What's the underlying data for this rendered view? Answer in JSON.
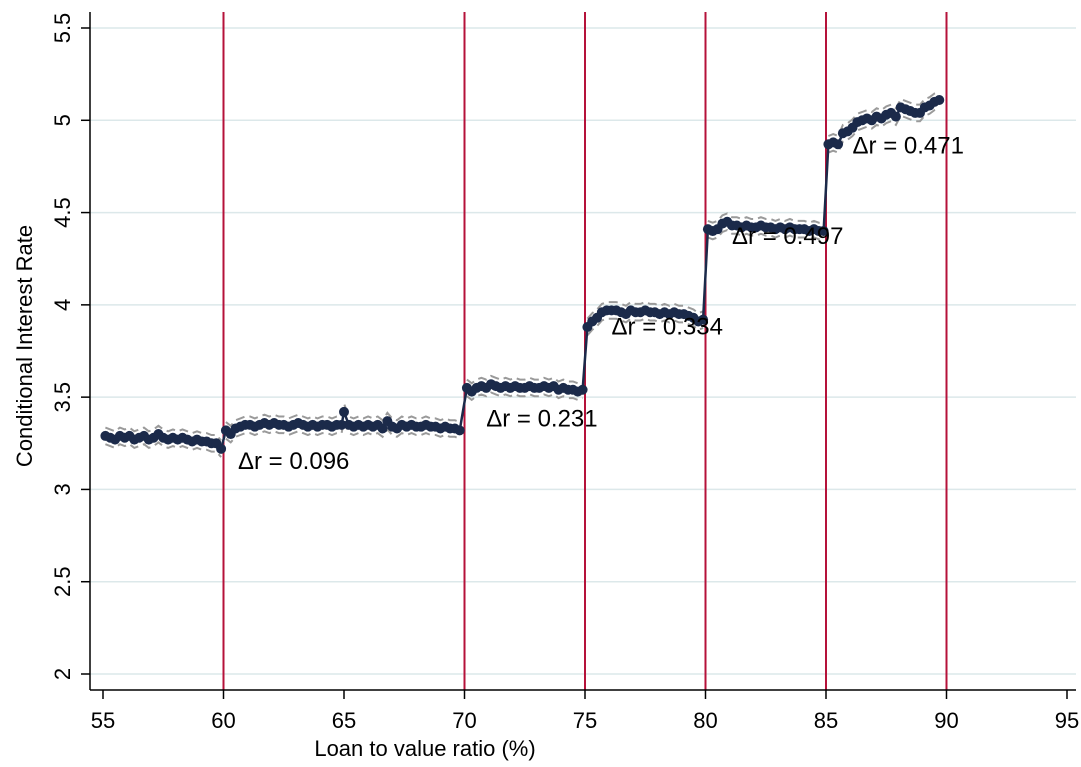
{
  "chart_data": {
    "type": "scatter",
    "title": "",
    "xlabel": "Loan to value ratio (%)",
    "ylabel": "Conditional Interest Rate",
    "xlim": [
      55,
      95
    ],
    "ylim": [
      2,
      5.5
    ],
    "x_ticks": [
      55,
      60,
      65,
      70,
      75,
      80,
      85,
      90,
      95
    ],
    "y_ticks": [
      2,
      2.5,
      3,
      3.5,
      4,
      4.5,
      5,
      5.5
    ],
    "x_tick_labels": [
      "55",
      "60",
      "65",
      "70",
      "75",
      "80",
      "85",
      "90",
      "95"
    ],
    "y_tick_labels": [
      "2",
      "2.5",
      "3",
      "3.5",
      "4",
      "4.5",
      "5",
      "5.5"
    ],
    "grid": "horizontal",
    "vertical_lines": [
      60,
      70,
      75,
      80,
      85,
      90
    ],
    "colors": {
      "series": "#1b2a4a",
      "ci": "#9a9a9a",
      "vline": "#b5123a",
      "grid": "#dce8ea"
    },
    "series": [
      {
        "values": [
          [
            55.1,
            3.29
          ],
          [
            55.3,
            3.28
          ],
          [
            55.5,
            3.27
          ],
          [
            55.7,
            3.29
          ],
          [
            55.9,
            3.28
          ],
          [
            56.1,
            3.29
          ],
          [
            56.3,
            3.27
          ],
          [
            56.5,
            3.28
          ],
          [
            56.7,
            3.29
          ],
          [
            56.9,
            3.27
          ],
          [
            57.1,
            3.28
          ],
          [
            57.3,
            3.3
          ],
          [
            57.5,
            3.28
          ],
          [
            57.7,
            3.27
          ],
          [
            57.9,
            3.28
          ],
          [
            58.1,
            3.27
          ],
          [
            58.3,
            3.28
          ],
          [
            58.5,
            3.27
          ],
          [
            58.7,
            3.26
          ],
          [
            58.9,
            3.27
          ],
          [
            59.1,
            3.26
          ],
          [
            59.3,
            3.26
          ],
          [
            59.5,
            3.25
          ],
          [
            59.7,
            3.25
          ],
          [
            59.9,
            3.22
          ],
          [
            60.1,
            3.32
          ],
          [
            60.3,
            3.3
          ],
          [
            60.5,
            3.33
          ],
          [
            60.7,
            3.34
          ],
          [
            60.9,
            3.35
          ],
          [
            61.1,
            3.35
          ],
          [
            61.3,
            3.34
          ],
          [
            61.5,
            3.35
          ],
          [
            61.7,
            3.36
          ],
          [
            61.9,
            3.35
          ],
          [
            62.1,
            3.36
          ],
          [
            62.3,
            3.35
          ],
          [
            62.5,
            3.35
          ],
          [
            62.7,
            3.34
          ],
          [
            62.9,
            3.35
          ],
          [
            63.1,
            3.36
          ],
          [
            63.3,
            3.35
          ],
          [
            63.5,
            3.34
          ],
          [
            63.7,
            3.35
          ],
          [
            63.9,
            3.34
          ],
          [
            64.1,
            3.35
          ],
          [
            64.3,
            3.35
          ],
          [
            64.5,
            3.34
          ],
          [
            64.7,
            3.35
          ],
          [
            64.9,
            3.35
          ],
          [
            65.0,
            3.42
          ],
          [
            65.2,
            3.35
          ],
          [
            65.4,
            3.34
          ],
          [
            65.6,
            3.35
          ],
          [
            65.8,
            3.34
          ],
          [
            66.0,
            3.35
          ],
          [
            66.2,
            3.34
          ],
          [
            66.4,
            3.35
          ],
          [
            66.6,
            3.33
          ],
          [
            66.8,
            3.37
          ],
          [
            67.0,
            3.34
          ],
          [
            67.2,
            3.33
          ],
          [
            67.4,
            3.35
          ],
          [
            67.6,
            3.34
          ],
          [
            67.8,
            3.35
          ],
          [
            68.0,
            3.34
          ],
          [
            68.2,
            3.34
          ],
          [
            68.4,
            3.35
          ],
          [
            68.6,
            3.34
          ],
          [
            68.8,
            3.34
          ],
          [
            69.0,
            3.33
          ],
          [
            69.2,
            3.34
          ],
          [
            69.4,
            3.33
          ],
          [
            69.6,
            3.33
          ],
          [
            69.8,
            3.32
          ],
          [
            70.1,
            3.55
          ],
          [
            70.3,
            3.53
          ],
          [
            70.5,
            3.55
          ],
          [
            70.7,
            3.56
          ],
          [
            70.9,
            3.55
          ],
          [
            71.1,
            3.57
          ],
          [
            71.3,
            3.56
          ],
          [
            71.5,
            3.55
          ],
          [
            71.7,
            3.56
          ],
          [
            71.9,
            3.55
          ],
          [
            72.1,
            3.56
          ],
          [
            72.3,
            3.55
          ],
          [
            72.5,
            3.55
          ],
          [
            72.7,
            3.56
          ],
          [
            72.9,
            3.55
          ],
          [
            73.1,
            3.55
          ],
          [
            73.3,
            3.56
          ],
          [
            73.5,
            3.55
          ],
          [
            73.7,
            3.56
          ],
          [
            73.9,
            3.54
          ],
          [
            74.1,
            3.55
          ],
          [
            74.3,
            3.54
          ],
          [
            74.5,
            3.54
          ],
          [
            74.7,
            3.53
          ],
          [
            74.9,
            3.54
          ],
          [
            75.1,
            3.88
          ],
          [
            75.3,
            3.91
          ],
          [
            75.5,
            3.93
          ],
          [
            75.7,
            3.96
          ],
          [
            75.9,
            3.97
          ],
          [
            76.1,
            3.97
          ],
          [
            76.3,
            3.97
          ],
          [
            76.5,
            3.96
          ],
          [
            76.7,
            3.95
          ],
          [
            76.9,
            3.97
          ],
          [
            77.1,
            3.96
          ],
          [
            77.3,
            3.96
          ],
          [
            77.5,
            3.97
          ],
          [
            77.7,
            3.96
          ],
          [
            77.9,
            3.96
          ],
          [
            78.1,
            3.95
          ],
          [
            78.3,
            3.96
          ],
          [
            78.5,
            3.95
          ],
          [
            78.7,
            3.96
          ],
          [
            78.9,
            3.95
          ],
          [
            79.1,
            3.95
          ],
          [
            79.3,
            3.94
          ],
          [
            79.5,
            3.93
          ],
          [
            79.7,
            3.91
          ],
          [
            79.9,
            3.92
          ],
          [
            80.1,
            4.41
          ],
          [
            80.3,
            4.4
          ],
          [
            80.5,
            4.41
          ],
          [
            80.7,
            4.44
          ],
          [
            80.9,
            4.45
          ],
          [
            81.1,
            4.43
          ],
          [
            81.3,
            4.43
          ],
          [
            81.5,
            4.42
          ],
          [
            81.7,
            4.43
          ],
          [
            81.9,
            4.42
          ],
          [
            82.1,
            4.42
          ],
          [
            82.3,
            4.43
          ],
          [
            82.5,
            4.42
          ],
          [
            82.7,
            4.42
          ],
          [
            82.9,
            4.41
          ],
          [
            83.1,
            4.42
          ],
          [
            83.3,
            4.41
          ],
          [
            83.5,
            4.42
          ],
          [
            83.7,
            4.41
          ],
          [
            83.9,
            4.41
          ],
          [
            84.1,
            4.41
          ],
          [
            84.3,
            4.4
          ],
          [
            84.5,
            4.41
          ],
          [
            84.7,
            4.4
          ],
          [
            84.9,
            4.4
          ],
          [
            85.1,
            4.87
          ],
          [
            85.3,
            4.88
          ],
          [
            85.5,
            4.87
          ],
          [
            85.7,
            4.93
          ],
          [
            85.9,
            4.94
          ],
          [
            86.1,
            4.96
          ],
          [
            86.3,
            4.99
          ],
          [
            86.5,
            5.0
          ],
          [
            86.7,
            5.01
          ],
          [
            86.9,
            5.0
          ],
          [
            87.1,
            5.02
          ],
          [
            87.3,
            5.01
          ],
          [
            87.5,
            5.03
          ],
          [
            87.7,
            5.04
          ],
          [
            87.9,
            5.02
          ],
          [
            88.1,
            5.07
          ],
          [
            88.3,
            5.06
          ],
          [
            88.5,
            5.05
          ],
          [
            88.7,
            5.04
          ],
          [
            88.9,
            5.04
          ],
          [
            89.1,
            5.07
          ],
          [
            89.3,
            5.08
          ],
          [
            89.5,
            5.1
          ],
          [
            89.7,
            5.11
          ]
        ],
        "ci_halfwidth": 0.045
      }
    ],
    "annotations": [
      {
        "label": "Δr =  0.096",
        "x": 60.6,
        "y": 3.11
      },
      {
        "label": "Δr =  0.231",
        "x": 70.9,
        "y": 3.34
      },
      {
        "label": "Δr =  0.334",
        "x": 76.1,
        "y": 3.84
      },
      {
        "label": "Δr =  0.497",
        "x": 81.1,
        "y": 4.33
      },
      {
        "label": "Δr =  0.471",
        "x": 86.1,
        "y": 4.82
      }
    ]
  }
}
